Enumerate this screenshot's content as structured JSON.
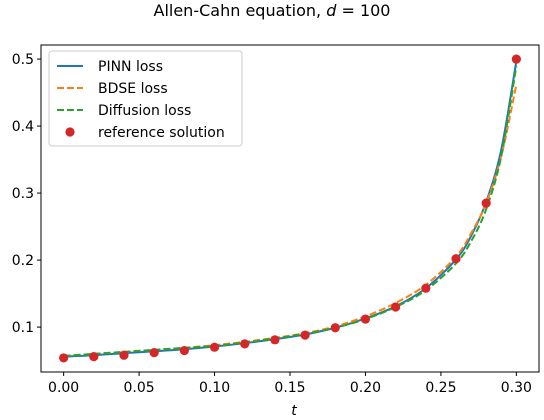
{
  "chart_data": {
    "type": "line",
    "title": "Allen-Cahn equation, ",
    "title_var": "d",
    "title_suffix": " = 100",
    "xlabel": "t",
    "ylabel": "",
    "xlim": [
      -0.015,
      0.315
    ],
    "ylim": [
      0.033,
      0.521
    ],
    "xticks": [
      0.0,
      0.05,
      0.1,
      0.15,
      0.2,
      0.25,
      0.3
    ],
    "xtick_labels": [
      "0.00",
      "0.05",
      "0.10",
      "0.15",
      "0.20",
      "0.25",
      "0.30"
    ],
    "yticks": [
      0.1,
      0.2,
      0.3,
      0.4,
      0.5
    ],
    "ytick_labels": [
      "0.1",
      "0.2",
      "0.3",
      "0.4",
      "0.5"
    ],
    "legend_position": "top-left",
    "grid": false,
    "series": [
      {
        "name": "PINN loss",
        "style": "solid",
        "color": "#1f77b4",
        "x": [
          0.0,
          0.02,
          0.04,
          0.06,
          0.08,
          0.1,
          0.12,
          0.14,
          0.16,
          0.18,
          0.2,
          0.22,
          0.24,
          0.26,
          0.27,
          0.28,
          0.29,
          0.3
        ],
        "y": [
          0.056,
          0.058,
          0.061,
          0.064,
          0.067,
          0.071,
          0.076,
          0.082,
          0.089,
          0.099,
          0.113,
          0.131,
          0.158,
          0.201,
          0.236,
          0.287,
          0.365,
          0.497
        ]
      },
      {
        "name": "BDSE loss",
        "style": "dashed",
        "color": "#ff7f0e",
        "x": [
          0.0,
          0.02,
          0.04,
          0.06,
          0.08,
          0.1,
          0.12,
          0.14,
          0.16,
          0.18,
          0.2,
          0.22,
          0.24,
          0.26,
          0.27,
          0.28,
          0.29,
          0.3
        ],
        "y": [
          0.057,
          0.06,
          0.063,
          0.066,
          0.069,
          0.073,
          0.078,
          0.084,
          0.091,
          0.101,
          0.116,
          0.136,
          0.163,
          0.205,
          0.24,
          0.285,
          0.355,
          0.462
        ]
      },
      {
        "name": "Diffusion loss",
        "style": "dashed",
        "color": "#2ca02c",
        "x": [
          0.0,
          0.02,
          0.04,
          0.06,
          0.08,
          0.1,
          0.12,
          0.14,
          0.16,
          0.18,
          0.2,
          0.22,
          0.24,
          0.26,
          0.27,
          0.28,
          0.29,
          0.3
        ],
        "y": [
          0.057,
          0.06,
          0.063,
          0.066,
          0.069,
          0.072,
          0.077,
          0.083,
          0.09,
          0.099,
          0.112,
          0.13,
          0.155,
          0.195,
          0.228,
          0.276,
          0.355,
          0.49
        ]
      },
      {
        "name": "reference solution",
        "style": "markers",
        "color": "#d62728",
        "x": [
          0.0,
          0.02,
          0.04,
          0.06,
          0.08,
          0.1,
          0.12,
          0.14,
          0.16,
          0.18,
          0.2,
          0.22,
          0.24,
          0.26,
          0.28,
          0.3
        ],
        "y": [
          0.054,
          0.056,
          0.058,
          0.062,
          0.065,
          0.07,
          0.075,
          0.081,
          0.088,
          0.099,
          0.112,
          0.13,
          0.158,
          0.202,
          0.285,
          0.5
        ]
      }
    ]
  }
}
